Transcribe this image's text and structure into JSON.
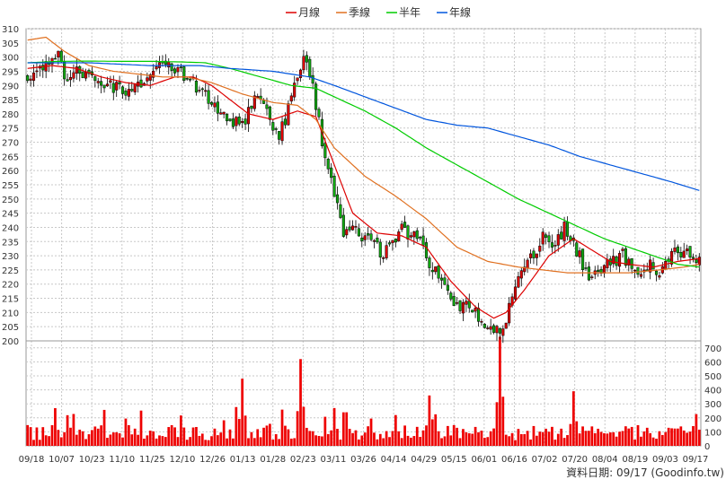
{
  "legend": {
    "ma20_label": "月線",
    "ma60_label": "季線",
    "ma120_label": "半年",
    "ma240_label": "年線"
  },
  "source_label": "資料日期: 09/17  (Goodinfo.tw)",
  "colors": {
    "ma20": "#dd0000",
    "ma60": "#e07020",
    "ma120": "#00cc00",
    "ma240": "#0055dd",
    "up_candle": "#dd0000",
    "down_candle": "#11aa11",
    "volume": "#ee0000",
    "grid": "#c8c8c8"
  },
  "chart_data": [
    {
      "type": "candlestick",
      "title": "",
      "ylim": [
        200,
        310
      ],
      "y_ticks": [
        200,
        205,
        210,
        215,
        220,
        225,
        230,
        235,
        240,
        245,
        250,
        255,
        260,
        265,
        270,
        275,
        280,
        285,
        290,
        295,
        300,
        305,
        310
      ],
      "x_ticks": [
        "09/18",
        "10/07",
        "10/23",
        "11/10",
        "11/25",
        "12/10",
        "12/26",
        "01/13",
        "01/28",
        "02/23",
        "03/11",
        "03/26",
        "04/14",
        "04/29",
        "05/15",
        "06/01",
        "06/16",
        "07/02",
        "07/20",
        "08/04",
        "08/19",
        "09/03",
        "09/17"
      ],
      "grid": true,
      "legend_position": "top-center",
      "price_path": [
        [
          0,
          294
        ],
        [
          6,
          297
        ],
        [
          10,
          300
        ],
        [
          12,
          293
        ],
        [
          16,
          296
        ],
        [
          22,
          291
        ],
        [
          28,
          290
        ],
        [
          32,
          287
        ],
        [
          38,
          291
        ],
        [
          44,
          297
        ],
        [
          50,
          294
        ],
        [
          56,
          289
        ],
        [
          60,
          284
        ],
        [
          64,
          279
        ],
        [
          70,
          276
        ],
        [
          74,
          286
        ],
        [
          78,
          280
        ],
        [
          82,
          271
        ],
        [
          86,
          286
        ],
        [
          90,
          300
        ],
        [
          93,
          290
        ],
        [
          96,
          270
        ],
        [
          100,
          252
        ],
        [
          103,
          237
        ],
        [
          107,
          240
        ],
        [
          112,
          234
        ],
        [
          116,
          231
        ],
        [
          122,
          239
        ],
        [
          127,
          237
        ],
        [
          131,
          228
        ],
        [
          135,
          220
        ],
        [
          139,
          212
        ],
        [
          143,
          214
        ],
        [
          147,
          209
        ],
        [
          151,
          205
        ],
        [
          155,
          205
        ],
        [
          158,
          215
        ],
        [
          161,
          224
        ],
        [
          164,
          230
        ],
        [
          168,
          236
        ],
        [
          172,
          233
        ],
        [
          175,
          241
        ],
        [
          178,
          235
        ],
        [
          182,
          224
        ],
        [
          186,
          222
        ],
        [
          190,
          228
        ],
        [
          194,
          230
        ],
        [
          198,
          223
        ],
        [
          202,
          227
        ],
        [
          206,
          225
        ],
        [
          210,
          230
        ],
        [
          214,
          232
        ],
        [
          219,
          229
        ]
      ],
      "ma_series": [
        {
          "name": "月線",
          "key": "ma20",
          "points": [
            [
              0,
              296
            ],
            [
              8,
              297
            ],
            [
              16,
              296
            ],
            [
              24,
              293
            ],
            [
              32,
              291
            ],
            [
              40,
              290
            ],
            [
              48,
              293
            ],
            [
              54,
              293
            ],
            [
              60,
              290
            ],
            [
              66,
              285
            ],
            [
              72,
              280
            ],
            [
              80,
              278
            ],
            [
              88,
              281
            ],
            [
              94,
              279
            ],
            [
              100,
              262
            ],
            [
              106,
              245
            ],
            [
              114,
              238
            ],
            [
              122,
              237
            ],
            [
              130,
              233
            ],
            [
              138,
              221
            ],
            [
              146,
              212
            ],
            [
              152,
              208
            ],
            [
              156,
              210
            ],
            [
              162,
              218
            ],
            [
              170,
              230
            ],
            [
              178,
              236
            ],
            [
              184,
              232
            ],
            [
              190,
              228
            ],
            [
              196,
              227
            ],
            [
              204,
              226
            ],
            [
              212,
              228
            ],
            [
              219,
              229
            ]
          ]
        },
        {
          "name": "季線",
          "key": "ma60",
          "points": [
            [
              0,
              306
            ],
            [
              6,
              307
            ],
            [
              12,
              302
            ],
            [
              20,
              297
            ],
            [
              28,
              295
            ],
            [
              36,
              294
            ],
            [
              44,
              293
            ],
            [
              52,
              293
            ],
            [
              60,
              291
            ],
            [
              70,
              287
            ],
            [
              80,
              284
            ],
            [
              88,
              283
            ],
            [
              94,
              278
            ],
            [
              100,
              268
            ],
            [
              110,
              258
            ],
            [
              120,
              251
            ],
            [
              130,
              243
            ],
            [
              140,
              233
            ],
            [
              150,
              228
            ],
            [
              160,
              226
            ],
            [
              168,
              225
            ],
            [
              176,
              224
            ],
            [
              186,
              224
            ],
            [
              196,
              224
            ],
            [
              206,
              225
            ],
            [
              214,
              226
            ],
            [
              219,
              227
            ]
          ]
        },
        {
          "name": "半年",
          "key": "ma120",
          "points": [
            [
              0,
              298
            ],
            [
              10,
              298.5
            ],
            [
              20,
              298.6
            ],
            [
              30,
              298.5
            ],
            [
              40,
              298.5
            ],
            [
              50,
              298.3
            ],
            [
              58,
              298
            ],
            [
              66,
              296
            ],
            [
              76,
              293
            ],
            [
              86,
              290
            ],
            [
              94,
              289
            ],
            [
              100,
              286
            ],
            [
              110,
              281
            ],
            [
              120,
              275
            ],
            [
              130,
              268
            ],
            [
              140,
              262
            ],
            [
              150,
              256
            ],
            [
              160,
              250
            ],
            [
              170,
              245
            ],
            [
              180,
              240
            ],
            [
              188,
              236
            ],
            [
              196,
              233
            ],
            [
              204,
              230
            ],
            [
              212,
              227
            ],
            [
              219,
              226
            ]
          ]
        },
        {
          "name": "年線",
          "key": "ma240",
          "points": [
            [
              0,
              298
            ],
            [
              20,
              298
            ],
            [
              40,
              297
            ],
            [
              56,
              297
            ],
            [
              66,
              296
            ],
            [
              80,
              295
            ],
            [
              92,
              293
            ],
            [
              100,
              290
            ],
            [
              110,
              286
            ],
            [
              120,
              282
            ],
            [
              130,
              278
            ],
            [
              140,
              276
            ],
            [
              150,
              275
            ],
            [
              160,
              272
            ],
            [
              170,
              269
            ],
            [
              180,
              265
            ],
            [
              190,
              262
            ],
            [
              200,
              259
            ],
            [
              210,
              256
            ],
            [
              219,
              253
            ]
          ]
        }
      ]
    },
    {
      "type": "bar",
      "title": "",
      "ylim": [
        0,
        750
      ],
      "y_ticks": [
        0,
        100,
        200,
        300,
        400,
        500,
        600,
        700
      ],
      "grid": true,
      "volume_spikes": [
        [
          70,
          480
        ],
        [
          89,
          620
        ],
        [
          100,
          270
        ],
        [
          131,
          360
        ],
        [
          154,
          780
        ],
        [
          178,
          390
        ]
      ]
    }
  ]
}
